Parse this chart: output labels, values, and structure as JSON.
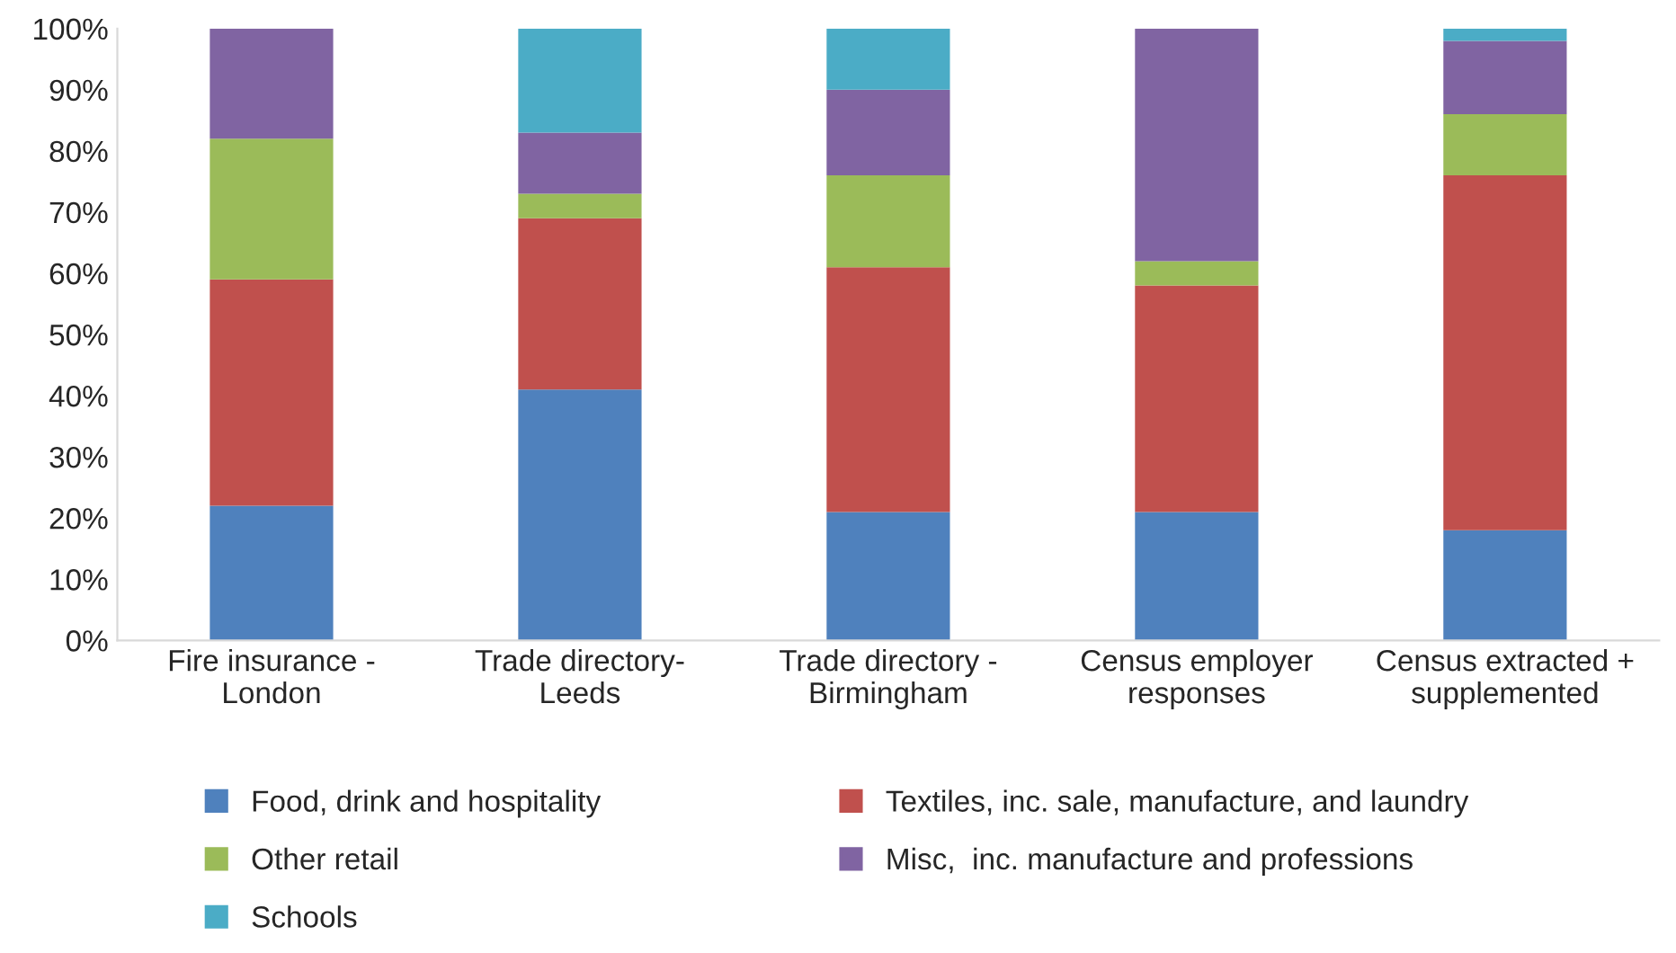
{
  "chart_data": {
    "type": "bar",
    "stacked": true,
    "categories": [
      "Fire insurance -\nLondon",
      "Trade directory-\nLeeds",
      "Trade directory -\nBirmingham",
      "Census employer\nresponses",
      "Census extracted +\nsupplemented"
    ],
    "series": [
      {
        "name": "Food, drink and hospitality",
        "color": "#4f81bd",
        "values": [
          22,
          41,
          21,
          21,
          18
        ]
      },
      {
        "name": "Textiles, inc. sale, manufacture, and laundry",
        "color": "#c0504d",
        "values": [
          37,
          28,
          40,
          37,
          58
        ]
      },
      {
        "name": "Other retail",
        "color": "#9bbb59",
        "values": [
          23,
          4,
          15,
          4,
          10
        ]
      },
      {
        "name": "Misc,  inc. manufacture and professions",
        "color": "#8064a2",
        "values": [
          18,
          10,
          14,
          38,
          12
        ]
      },
      {
        "name": "Schools",
        "color": "#4bacc6",
        "values": [
          null,
          17,
          10,
          null,
          2
        ]
      }
    ],
    "ylim": [
      0,
      100
    ],
    "yticks": [
      {
        "value": 0,
        "label": "0%"
      },
      {
        "value": 10,
        "label": "10%"
      },
      {
        "value": 20,
        "label": "20%"
      },
      {
        "value": 30,
        "label": "30%"
      },
      {
        "value": 40,
        "label": "40%"
      },
      {
        "value": 50,
        "label": "50%"
      },
      {
        "value": 60,
        "label": "60%"
      },
      {
        "value": 70,
        "label": "70%"
      },
      {
        "value": 80,
        "label": "80%"
      },
      {
        "value": 90,
        "label": "90%"
      },
      {
        "value": 100,
        "label": "100%"
      }
    ],
    "grid": false,
    "legend": "bottom"
  }
}
